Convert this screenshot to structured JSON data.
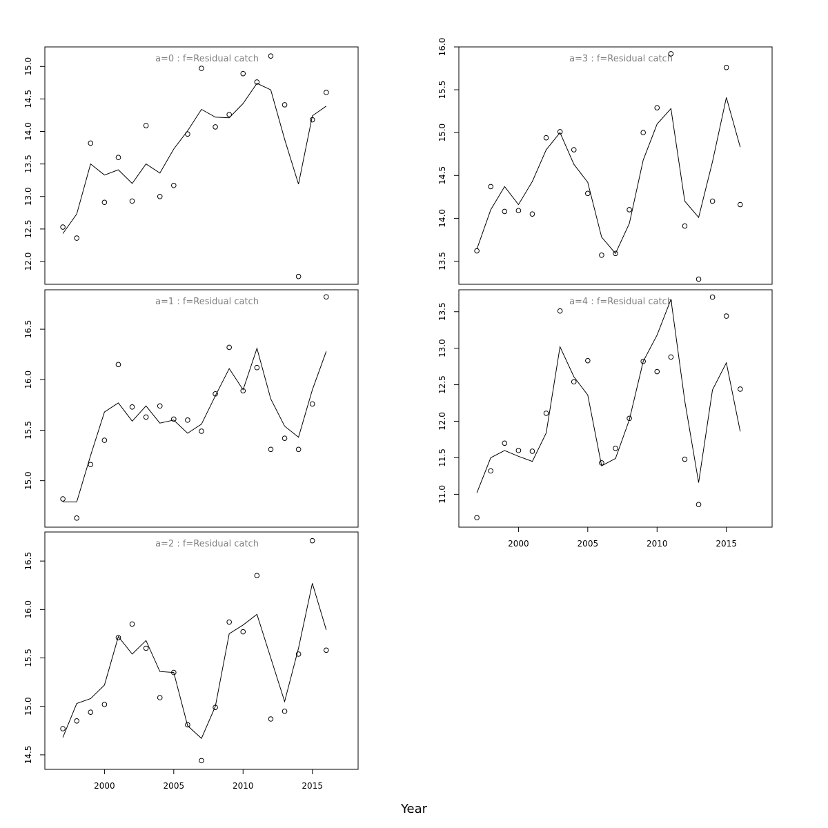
{
  "chart_data": {
    "type": "scatter",
    "xlabel": "Year",
    "x": [
      1997,
      1998,
      1999,
      2000,
      2001,
      2002,
      2003,
      2004,
      2005,
      2006,
      2007,
      2008,
      2009,
      2010,
      2011,
      2012,
      2013,
      2014,
      2015,
      2016
    ],
    "x_ticks": [
      2000,
      2005,
      2010,
      2015
    ],
    "xlim": [
      1995.7,
      2018.3
    ],
    "colors": {
      "points": "#000000",
      "line": "#000000",
      "title": "#808080",
      "frame": "#000000"
    },
    "panels": [
      {
        "title": "a=0  :  f=Residual catch",
        "ylim": [
          11.65,
          15.3
        ],
        "y_ticks": [
          "12.0",
          "12.5",
          "13.0",
          "13.5",
          "14.0",
          "14.5",
          "15.0"
        ],
        "observed": [
          12.53,
          12.36,
          13.82,
          12.91,
          13.6,
          12.93,
          14.09,
          13.0,
          13.17,
          13.96,
          14.97,
          14.07,
          14.26,
          14.89,
          14.76,
          15.16,
          14.41,
          11.77,
          14.18,
          14.6
        ],
        "fitted": [
          12.43,
          12.73,
          13.5,
          13.33,
          13.41,
          13.2,
          13.5,
          13.36,
          13.73,
          14.01,
          14.34,
          14.22,
          14.21,
          14.43,
          14.74,
          14.64,
          13.88,
          13.19,
          14.24,
          14.39
        ]
      },
      {
        "title": "a=1  :  f=Residual catch",
        "ylim": [
          14.54,
          16.89
        ],
        "y_ticks": [
          "15.0",
          "15.5",
          "16.0",
          "16.5"
        ],
        "observed": [
          14.82,
          14.63,
          15.16,
          15.4,
          16.15,
          15.73,
          15.63,
          15.74,
          15.61,
          15.6,
          15.49,
          15.86,
          16.32,
          15.89,
          16.12,
          15.31,
          15.42,
          15.31,
          15.76,
          16.82
        ],
        "fitted": [
          14.79,
          14.79,
          15.25,
          15.68,
          15.77,
          15.59,
          15.74,
          15.57,
          15.6,
          15.47,
          15.56,
          15.84,
          16.11,
          15.9,
          16.31,
          15.81,
          15.54,
          15.43,
          15.9,
          16.28
        ]
      },
      {
        "title": "a=2  :  f=Residual catch",
        "ylim": [
          14.35,
          16.8
        ],
        "y_ticks": [
          "14.5",
          "15.0",
          "15.5",
          "16.0",
          "16.5"
        ],
        "observed": [
          14.77,
          14.85,
          14.94,
          15.02,
          15.71,
          15.85,
          15.6,
          15.09,
          15.35,
          14.81,
          14.44,
          14.99,
          15.87,
          15.77,
          16.35,
          14.87,
          14.95,
          15.54,
          16.71,
          15.58
        ],
        "fitted": [
          14.68,
          15.03,
          15.08,
          15.22,
          15.72,
          15.54,
          15.68,
          15.36,
          15.35,
          14.8,
          14.67,
          15.0,
          15.75,
          15.84,
          15.95,
          15.5,
          15.05,
          15.6,
          16.27,
          15.79
        ]
      },
      {
        "title": "a=3  :  f=Residual catch",
        "ylim": [
          13.23,
          16.0
        ],
        "y_ticks": [
          "13.5",
          "14.0",
          "14.5",
          "15.0",
          "15.5",
          "16.0"
        ],
        "observed": [
          13.62,
          14.37,
          14.08,
          14.09,
          14.05,
          14.94,
          15.01,
          14.8,
          14.29,
          13.57,
          13.59,
          14.1,
          15.0,
          15.29,
          15.92,
          13.91,
          13.29,
          14.2,
          15.76,
          14.16
        ],
        "fitted": [
          13.64,
          14.1,
          14.37,
          14.16,
          14.43,
          14.8,
          15.0,
          14.63,
          14.42,
          13.78,
          13.59,
          13.94,
          14.68,
          15.1,
          15.28,
          14.2,
          14.01,
          14.66,
          15.41,
          14.83
        ]
      },
      {
        "title": "a=4  :  f=Residual catch",
        "ylim": [
          10.55,
          13.8
        ],
        "y_ticks": [
          "11.0",
          "11.5",
          "12.0",
          "12.5",
          "13.0",
          "13.5"
        ],
        "observed": [
          10.68,
          11.32,
          11.7,
          11.6,
          11.59,
          12.11,
          13.51,
          12.54,
          12.83,
          11.43,
          11.63,
          12.04,
          12.82,
          12.68,
          12.88,
          11.48,
          10.86,
          13.7,
          13.44,
          12.44
        ],
        "fitted": [
          11.02,
          11.5,
          11.6,
          11.52,
          11.45,
          11.84,
          13.02,
          12.61,
          12.36,
          11.39,
          11.49,
          12.02,
          12.82,
          13.18,
          13.67,
          12.28,
          11.16,
          12.43,
          12.8,
          11.86
        ]
      }
    ]
  }
}
